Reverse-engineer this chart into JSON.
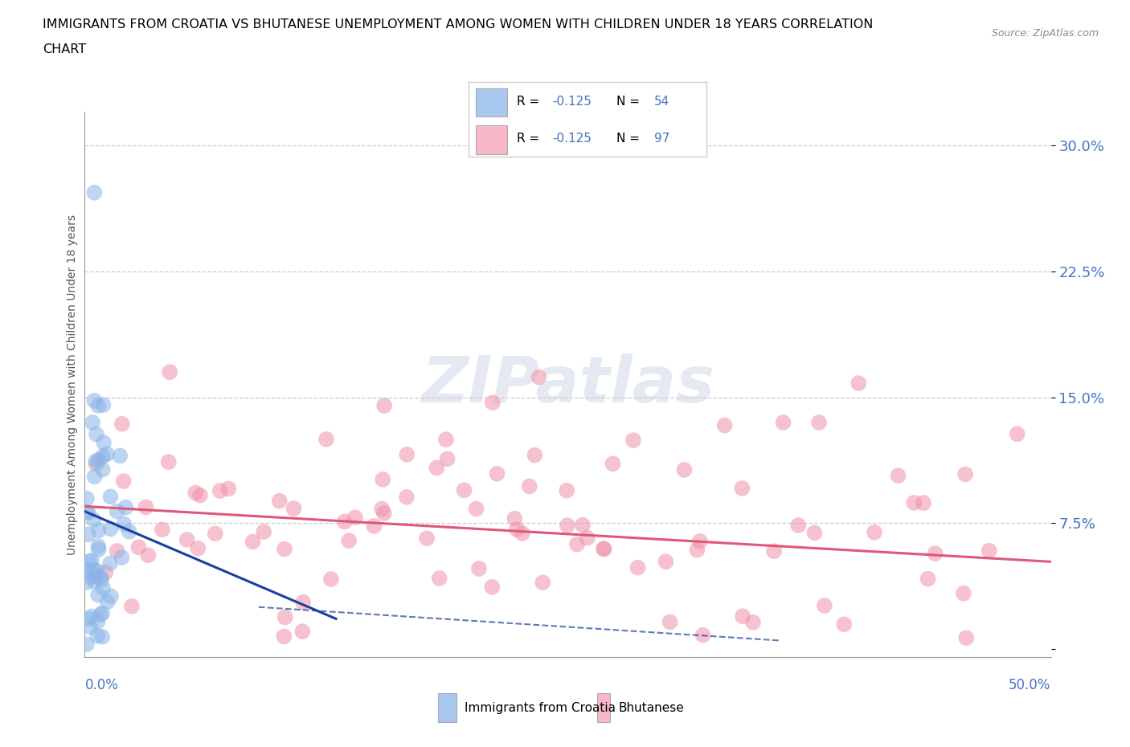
{
  "title_line1": "IMMIGRANTS FROM CROATIA VS BHUTANESE UNEMPLOYMENT AMONG WOMEN WITH CHILDREN UNDER 18 YEARS CORRELATION",
  "title_line2": "CHART",
  "source": "Source: ZipAtlas.com",
  "ylabel": "Unemployment Among Women with Children Under 18 years",
  "xlim": [
    0.0,
    0.5
  ],
  "ylim": [
    -0.005,
    0.32
  ],
  "ytick_vals": [
    0.0,
    0.075,
    0.15,
    0.225,
    0.3
  ],
  "ytick_labels": [
    "",
    "7.5%",
    "15.0%",
    "22.5%",
    "30.0%"
  ],
  "croatia_color": "#8ab4e8",
  "bhutanese_color": "#f090a8",
  "croatia_trend_color": "#1a3fa0",
  "bhutanese_trend_color": "#e05878",
  "watermark_text": "ZIPatlas",
  "legend_entries": [
    {
      "color": "#a8c8f0",
      "r": "R = -0.125",
      "n": "N = 54"
    },
    {
      "color": "#f8b8c8",
      "r": "R = -0.125",
      "n": "N = 97"
    }
  ]
}
